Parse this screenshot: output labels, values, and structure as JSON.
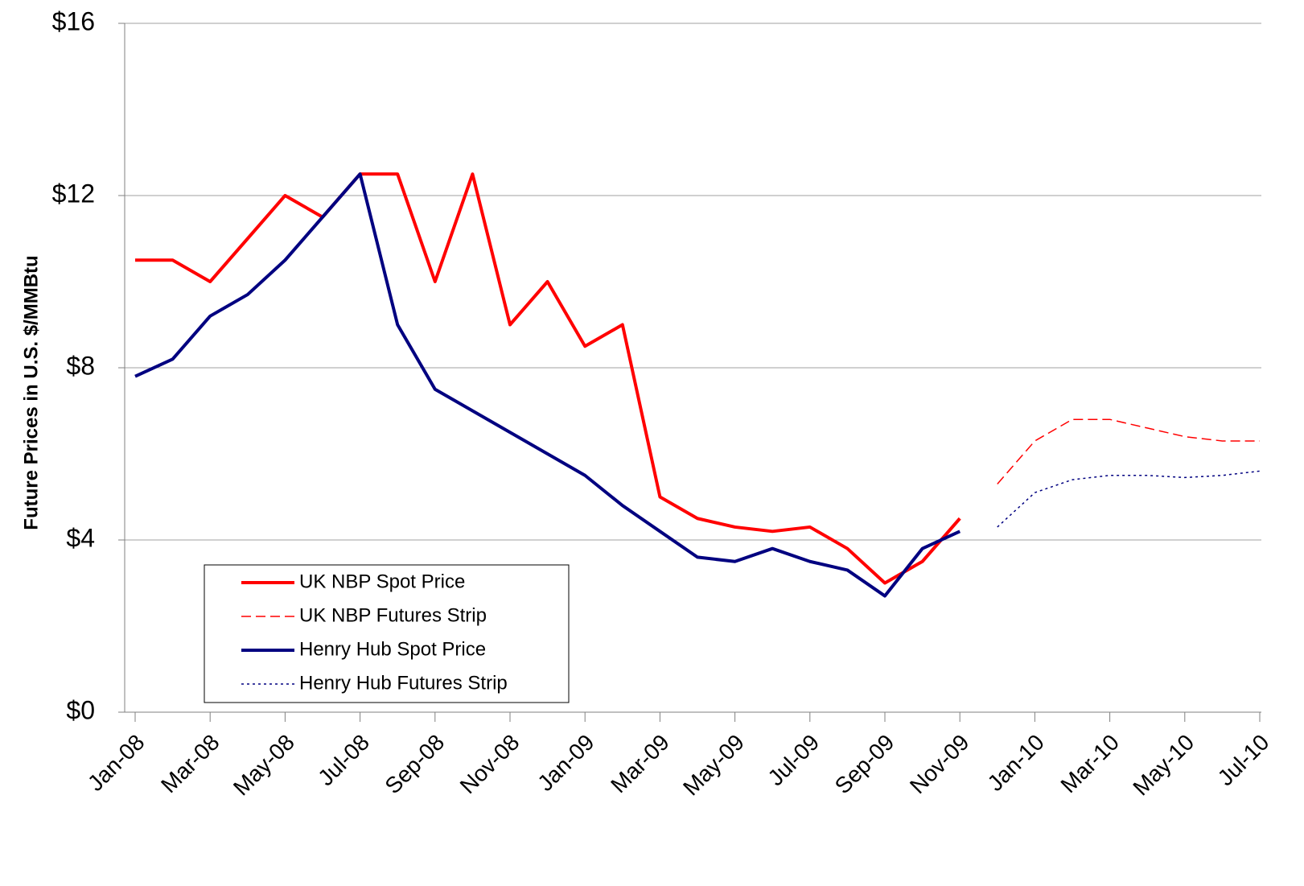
{
  "chart_data": {
    "type": "line",
    "y_label": "Future Prices  in U.S. $/MMBtu",
    "categories": [
      "Jan-08",
      null,
      "Mar-08",
      null,
      "May-08",
      null,
      "Jul-08",
      null,
      "Sep-08",
      null,
      "Nov-08",
      null,
      "Jan-09",
      null,
      "Mar-09",
      null,
      "May-09",
      null,
      "Jul-09",
      null,
      "Sep-09",
      null,
      "Nov-09",
      null,
      "Jan-10",
      null,
      "Mar-10",
      null,
      "May-10",
      null,
      "Jul-10"
    ],
    "series": [
      {
        "name": "UK NBP Spot Price",
        "color": "#ff0000",
        "dash": "solid",
        "values": [
          10.5,
          10.5,
          10.0,
          11.0,
          12.0,
          11.5,
          12.5,
          12.5,
          10.0,
          12.5,
          9.0,
          10.0,
          8.5,
          9.0,
          5.0,
          4.5,
          4.3,
          4.2,
          4.3,
          3.8,
          3.0,
          3.5,
          4.5,
          null,
          null,
          null,
          null,
          null,
          null,
          null,
          null
        ]
      },
      {
        "name": "UK NBP Futures Strip",
        "color": "#ff0000",
        "dash": "dashed",
        "values": [
          null,
          null,
          null,
          null,
          null,
          null,
          null,
          null,
          null,
          null,
          null,
          null,
          null,
          null,
          null,
          null,
          null,
          null,
          null,
          null,
          null,
          null,
          null,
          5.3,
          6.3,
          6.8,
          6.8,
          6.6,
          6.4,
          6.3,
          6.3
        ]
      },
      {
        "name": "Henry Hub Spot Price",
        "color": "#000080",
        "dash": "solid",
        "values": [
          7.8,
          8.2,
          9.2,
          9.7,
          10.5,
          11.5,
          12.5,
          9.0,
          7.5,
          7.0,
          6.5,
          6.0,
          5.5,
          4.8,
          4.2,
          3.6,
          3.5,
          3.8,
          3.5,
          3.3,
          2.7,
          3.8,
          4.2,
          null,
          null,
          null,
          null,
          null,
          null,
          null,
          null
        ]
      },
      {
        "name": "Henry Hub Futures Strip",
        "color": "#000080",
        "dash": "dotted",
        "values": [
          null,
          null,
          null,
          null,
          null,
          null,
          null,
          null,
          null,
          null,
          null,
          null,
          null,
          null,
          null,
          null,
          null,
          null,
          null,
          null,
          null,
          null,
          null,
          4.3,
          5.1,
          5.4,
          5.5,
          5.5,
          5.45,
          5.5,
          5.6
        ]
      }
    ],
    "ylim": [
      0,
      16
    ],
    "yticks": [
      {
        "value": 0,
        "label": "$0"
      },
      {
        "value": 4,
        "label": "$4"
      },
      {
        "value": 8,
        "label": "$8"
      },
      {
        "value": 12,
        "label": "$12"
      },
      {
        "value": 16,
        "label": "$16"
      }
    ],
    "grid": true,
    "legend": "lower left"
  }
}
